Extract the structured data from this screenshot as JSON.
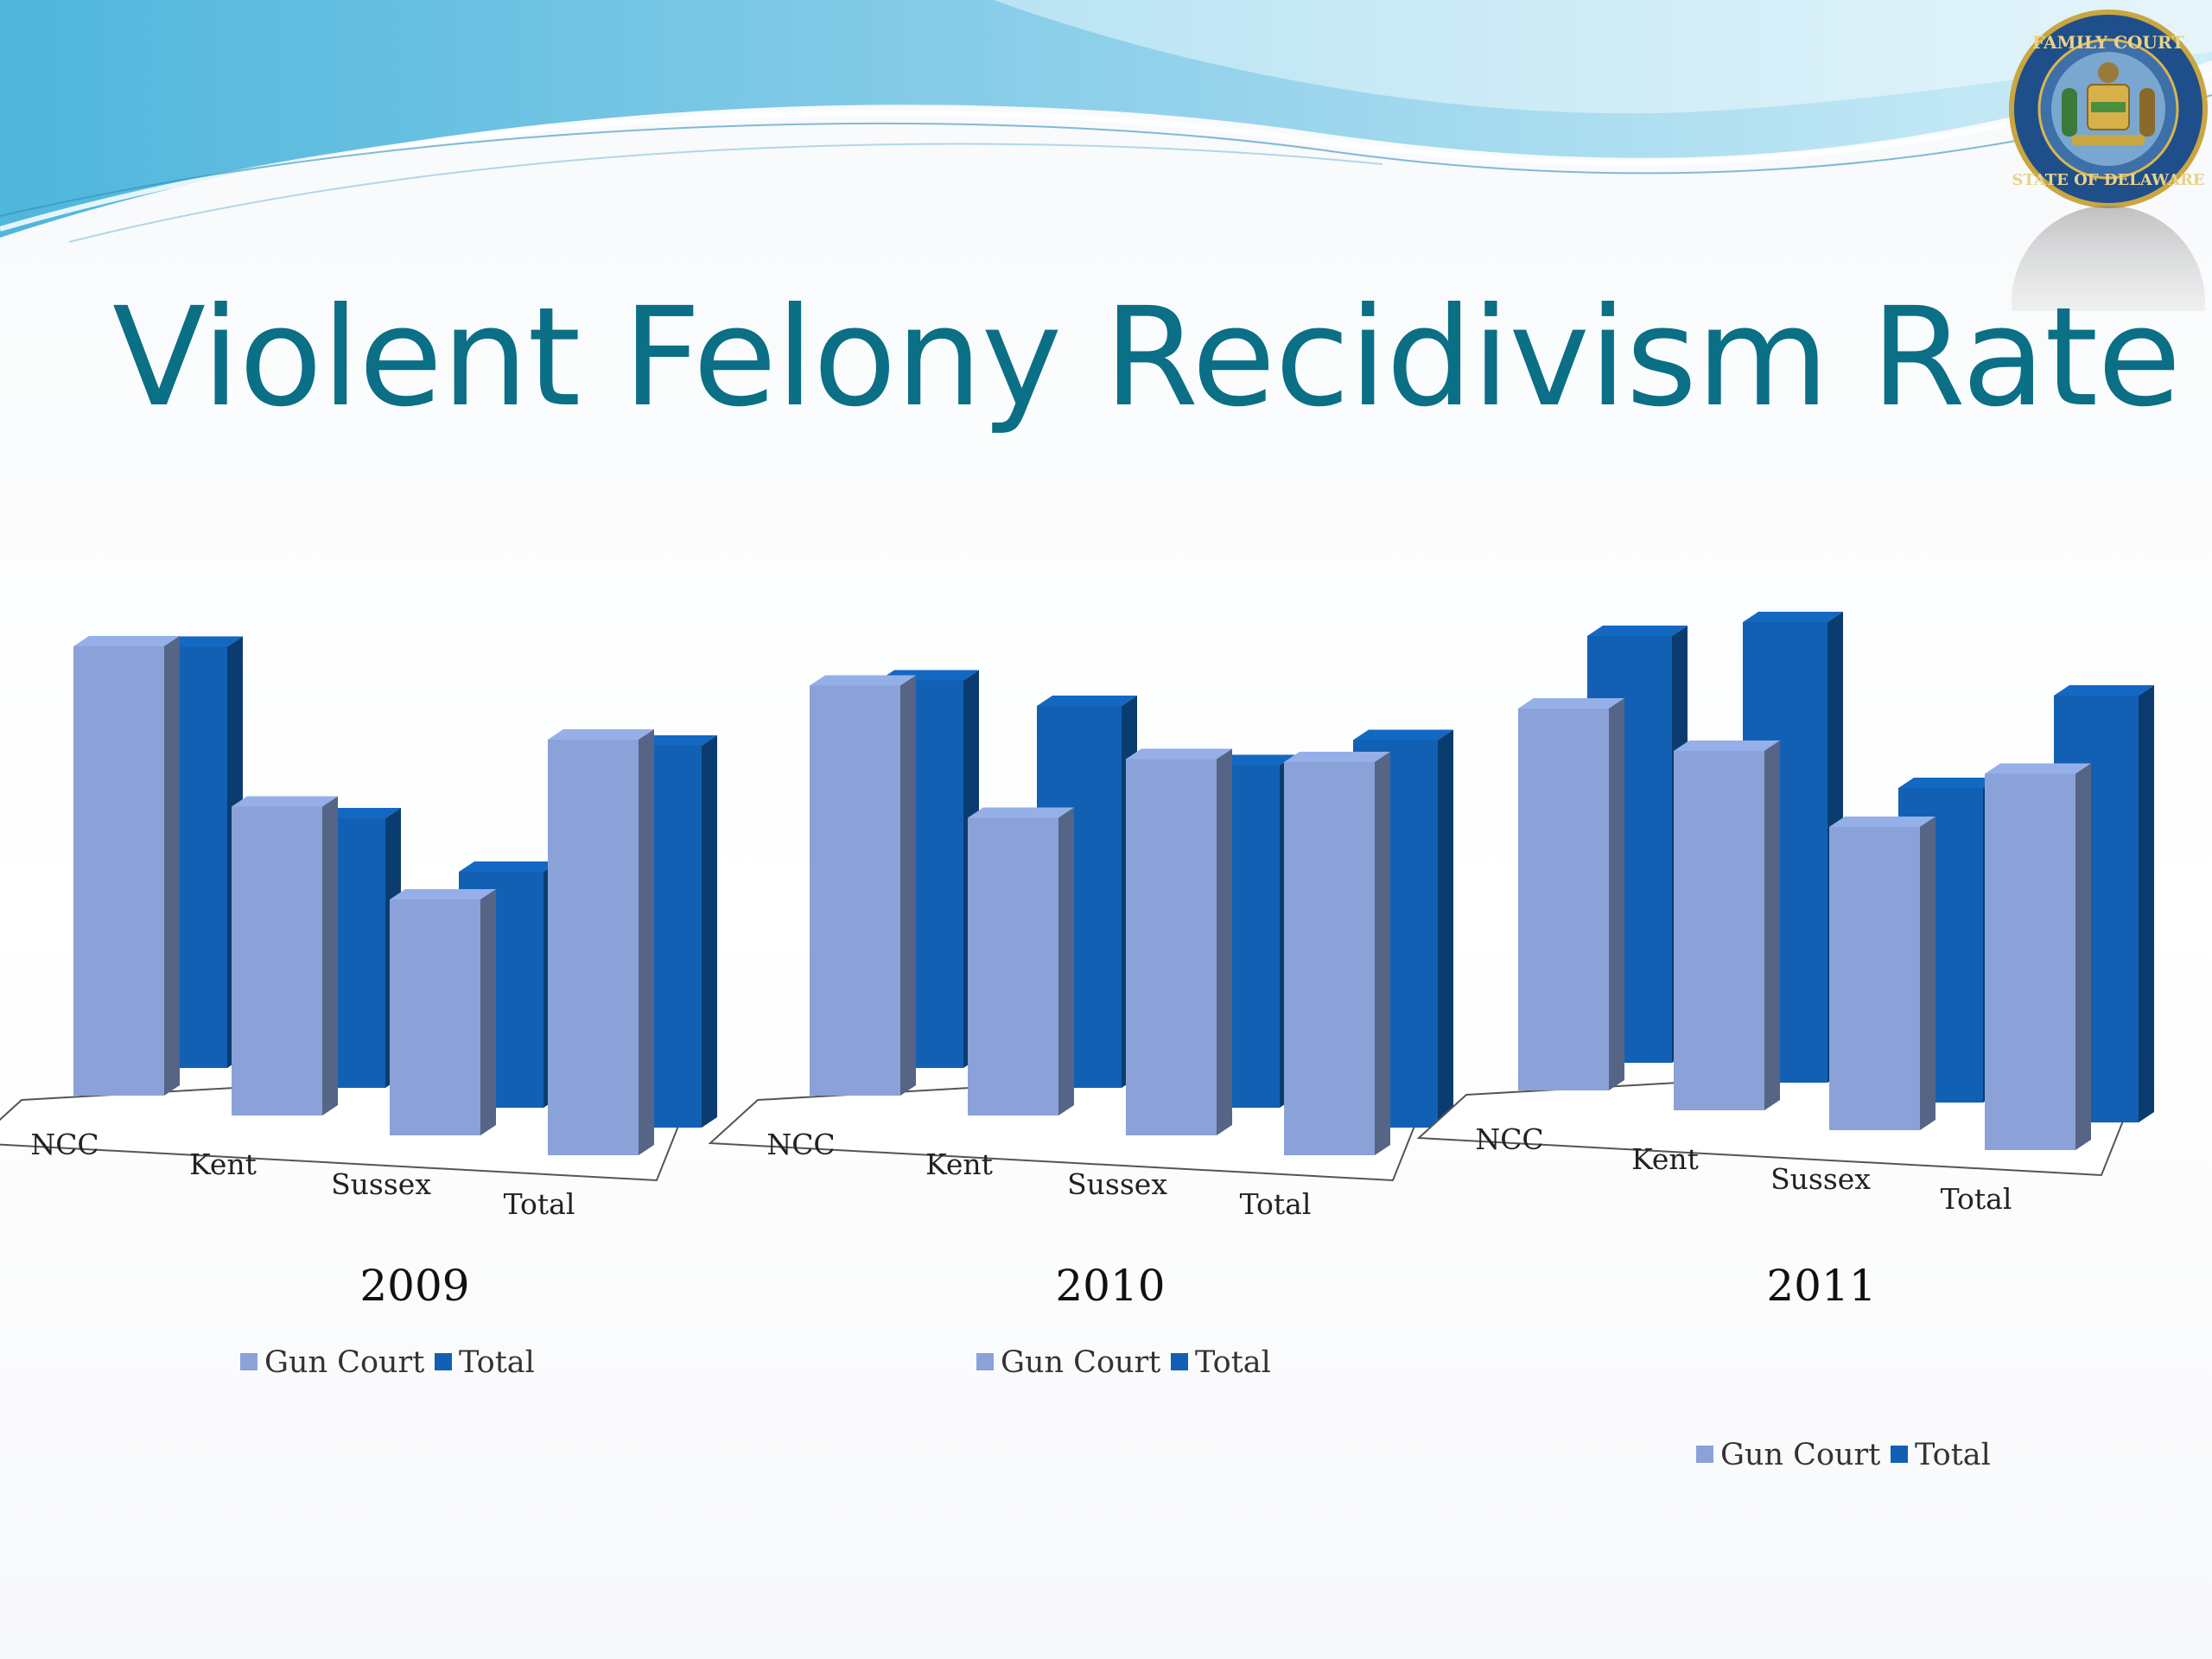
{
  "slide": {
    "title": "Violent Felony Recidivism Rate"
  },
  "colors": {
    "gun_court": "#8aa2d8",
    "total": "#1260b4",
    "title": "#0b6f86",
    "header_wave": "#5bbbe0"
  },
  "logo": {
    "type": "seal",
    "text_top": "FAMILY COURT",
    "text_bottom": "STATE OF DELAWARE"
  },
  "chart_data": [
    {
      "type": "bar",
      "style": "3d-clustered-column",
      "title": "2009",
      "categories": [
        "NCC",
        "Kent",
        "Sussex",
        "Total"
      ],
      "series": [
        {
          "name": "Gun Court",
          "values": [
            0.8,
            0.55,
            0.42,
            0.74
          ]
        },
        {
          "name": "Total",
          "values": [
            0.75,
            0.48,
            0.42,
            0.68
          ]
        }
      ],
      "ylim": [
        0,
        1
      ],
      "grid": false,
      "legend": {
        "position": "bottom",
        "entries": [
          "Gun Court",
          "Total"
        ]
      }
    },
    {
      "type": "bar",
      "style": "3d-clustered-column",
      "title": "2010",
      "categories": [
        "NCC",
        "Kent",
        "Sussex",
        "Total"
      ],
      "series": [
        {
          "name": "Gun Court",
          "values": [
            0.73,
            0.53,
            0.67,
            0.7
          ]
        },
        {
          "name": "Total",
          "values": [
            0.69,
            0.68,
            0.61,
            0.69
          ]
        }
      ],
      "ylim": [
        0,
        1
      ],
      "grid": false,
      "legend": {
        "position": "bottom",
        "entries": [
          "Gun Court",
          "Total"
        ]
      }
    },
    {
      "type": "bar",
      "style": "3d-clustered-column",
      "title": "2011",
      "categories": [
        "NCC",
        "Kent",
        "Sussex",
        "Total"
      ],
      "series": [
        {
          "name": "Gun Court",
          "values": [
            0.68,
            0.64,
            0.54,
            0.67
          ]
        },
        {
          "name": "Total",
          "values": [
            0.76,
            0.82,
            0.56,
            0.76
          ]
        }
      ],
      "ylim": [
        0,
        1
      ],
      "grid": false,
      "legend": {
        "position": "bottom-right",
        "entries": [
          "Gun Court",
          "Total"
        ]
      }
    }
  ]
}
